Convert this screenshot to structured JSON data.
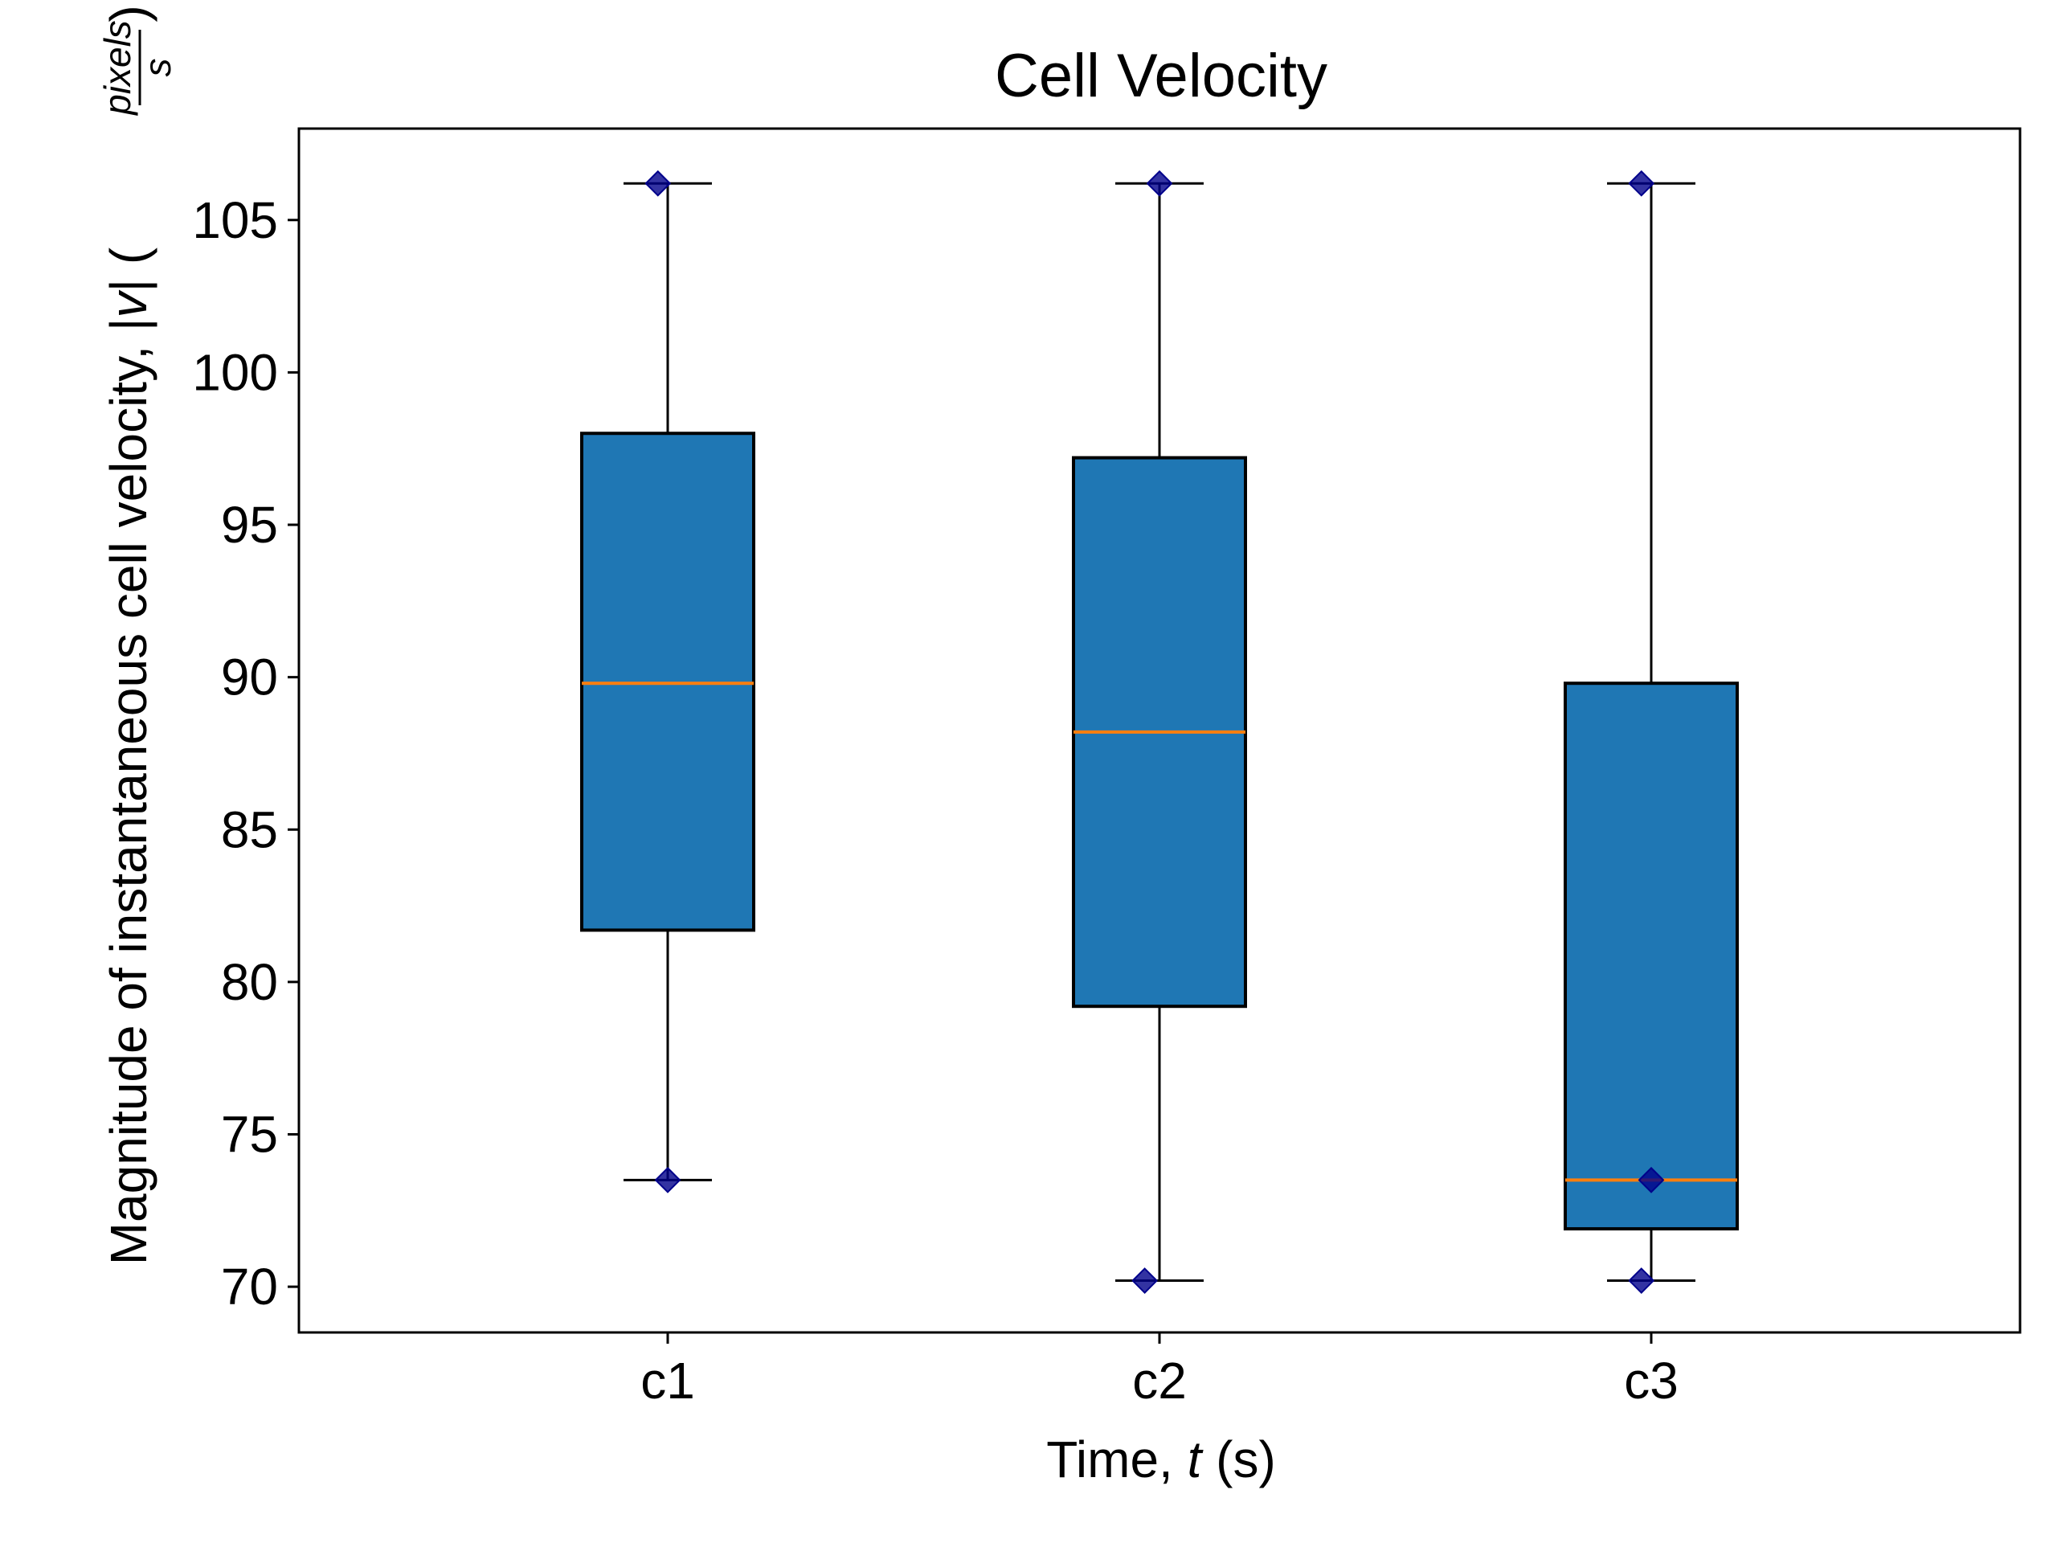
{
  "chart_data": {
    "type": "box",
    "title": "Cell Velocity",
    "xlabel": "Time, t (s)",
    "xlabel_parts": {
      "prefix": "Time, ",
      "var": "t",
      "suffix": " (s)"
    },
    "ylabel": "Magnitude of instantaneous cell velocity, |v| (pixels/s)",
    "ylabel_parts": {
      "prefix": "Magnitude of instantaneous cell velocity, |",
      "var": "v",
      "mid": "| (",
      "num": "pixels",
      "den": "s",
      "close": ")"
    },
    "categories": [
      "c1",
      "c2",
      "c3"
    ],
    "ylim": [
      68.5,
      108
    ],
    "yticks": [
      70,
      75,
      80,
      85,
      90,
      95,
      100,
      105
    ],
    "grid": false,
    "boxes": [
      {
        "category": "c1",
        "whisker_low": 73.5,
        "q1": 81.7,
        "median": 89.8,
        "q3": 98.0,
        "whisker_high": 106.2
      },
      {
        "category": "c2",
        "whisker_low": 70.2,
        "q1": 79.2,
        "median": 88.2,
        "q3": 97.2,
        "whisker_high": 106.2
      },
      {
        "category": "c3",
        "whisker_low": 70.2,
        "q1": 71.9,
        "median": 73.5,
        "q3": 89.8,
        "whisker_high": 106.2
      }
    ],
    "points": [
      {
        "category": "c1",
        "jitter": -0.02,
        "y": 106.2
      },
      {
        "category": "c1",
        "jitter": 0.0,
        "y": 73.5
      },
      {
        "category": "c2",
        "jitter": 0.0,
        "y": 106.2
      },
      {
        "category": "c2",
        "jitter": -0.03,
        "y": 70.2
      },
      {
        "category": "c3",
        "jitter": -0.02,
        "y": 106.2
      },
      {
        "category": "c3",
        "jitter": 0.0,
        "y": 73.5
      },
      {
        "category": "c3",
        "jitter": -0.02,
        "y": 70.2
      }
    ],
    "colors": {
      "box_fill": "#1f77b4",
      "median": "#ff7f0e",
      "points": "#00008b"
    }
  }
}
